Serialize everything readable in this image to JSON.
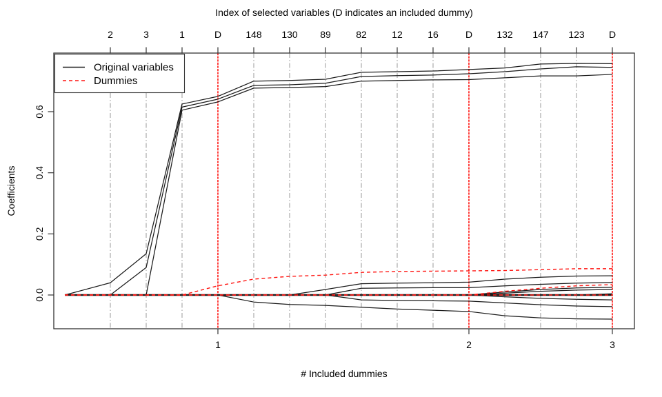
{
  "chart_data": {
    "type": "line",
    "title": "Index of selected variables (D indicates an included dummy)",
    "xlabel": "# Included dummies",
    "ylabel": "Coefficients",
    "grid": true,
    "legend": {
      "position": "topleft",
      "items": [
        {
          "label": "Original variables",
          "color": "#1a1a1a",
          "style": "solid"
        },
        {
          "label": "Dummies",
          "color": "#ff1410",
          "style": "dashed"
        }
      ]
    },
    "y_axis": {
      "tick_labels": [
        "0.0",
        "0.2",
        "0.4",
        "0.6"
      ],
      "tick_values": [
        0.0,
        0.2,
        0.4,
        0.6
      ],
      "range": [
        -0.112,
        0.792
      ]
    },
    "x_axis": {
      "ticks": [
        {
          "label": "1",
          "step": 4
        },
        {
          "label": "2",
          "step": 11
        },
        {
          "label": "3",
          "step": 15
        }
      ]
    },
    "top_axis": {
      "labels": [
        "2",
        "3",
        "1",
        "D",
        "148",
        "130",
        "89",
        "82",
        "12",
        "16",
        "D",
        "132",
        "147",
        "123",
        "D"
      ],
      "steps": [
        1,
        2,
        3,
        4,
        5,
        6,
        7,
        8,
        9,
        10,
        11,
        12,
        13,
        14,
        15
      ]
    },
    "dummy_entry_steps": [
      4,
      11,
      15
    ],
    "x_steps": [
      0,
      1,
      2,
      3,
      4,
      5,
      6,
      7,
      8,
      9,
      10,
      11,
      12,
      13,
      14,
      15
    ],
    "series": [
      {
        "name": "original-path-1",
        "group": "original",
        "values": [
          0,
          0.04,
          0.135,
          0.625,
          0.65,
          0.7,
          0.702,
          0.706,
          0.729,
          0.731,
          0.733,
          0.738,
          0.743,
          0.756,
          0.758,
          0.757
        ]
      },
      {
        "name": "original-path-2",
        "group": "original",
        "values": [
          0,
          0,
          0.09,
          0.615,
          0.641,
          0.686,
          0.688,
          0.693,
          0.715,
          0.718,
          0.72,
          0.724,
          0.731,
          0.74,
          0.747,
          0.745
        ]
      },
      {
        "name": "original-path-3",
        "group": "original",
        "values": [
          0,
          0,
          0,
          0.605,
          0.632,
          0.677,
          0.679,
          0.682,
          0.7,
          0.702,
          0.704,
          0.705,
          0.711,
          0.717,
          0.717,
          0.722
        ]
      },
      {
        "name": "original-path-4",
        "group": "original",
        "values": [
          0,
          0,
          0,
          0,
          0,
          -0.023,
          -0.031,
          -0.034,
          -0.04,
          -0.046,
          -0.05,
          -0.054,
          -0.068,
          -0.075,
          -0.078,
          -0.079
        ]
      },
      {
        "name": "original-path-5",
        "group": "original",
        "values": [
          0,
          0,
          0,
          0,
          0,
          0,
          0,
          0,
          -0.016,
          -0.018,
          -0.019,
          -0.02,
          -0.026,
          -0.032,
          -0.036,
          -0.038
        ]
      },
      {
        "name": "original-path-6",
        "group": "original",
        "values": [
          0,
          0,
          0,
          0,
          0,
          0,
          0,
          0.018,
          0.037,
          0.039,
          0.04,
          0.042,
          0.052,
          0.058,
          0.062,
          0.063
        ]
      },
      {
        "name": "original-path-7",
        "group": "original",
        "values": [
          0,
          0,
          0,
          0,
          0,
          0,
          0,
          0,
          0.022,
          0.023,
          0.024,
          0.024,
          0.03,
          0.035,
          0.039,
          0.041
        ]
      },
      {
        "name": "original-path-8",
        "group": "original",
        "values": [
          0,
          0,
          0,
          0,
          0,
          0,
          0,
          0,
          0,
          0,
          0,
          0,
          0.01,
          0.018,
          0.023,
          0.025
        ]
      },
      {
        "name": "original-path-9",
        "group": "original",
        "values": [
          0,
          0,
          0,
          0,
          0,
          0,
          0,
          0,
          0,
          0,
          0,
          0,
          0.006,
          0.012,
          0.016,
          0.018
        ]
      },
      {
        "name": "original-path-10",
        "group": "original",
        "values": [
          0,
          0,
          0,
          0,
          0,
          0,
          0,
          0,
          0,
          0,
          0,
          0,
          -0.006,
          -0.011,
          -0.014,
          -0.016
        ]
      },
      {
        "name": "original-path-11",
        "group": "original",
        "values": [
          0,
          0,
          0,
          0,
          0,
          0,
          0,
          0,
          0,
          0,
          0,
          0,
          0,
          0,
          0,
          0.004
        ]
      },
      {
        "name": "original-path-zero",
        "group": "original",
        "emphasis": true,
        "values": [
          0,
          0,
          0,
          0,
          0,
          0,
          0,
          0,
          0,
          0,
          0,
          0,
          0,
          0,
          0,
          0
        ]
      },
      {
        "name": "dummy-path-1",
        "group": "dummy",
        "values": [
          0,
          0,
          0,
          0,
          0.03,
          0.052,
          0.061,
          0.065,
          0.074,
          0.077,
          0.078,
          0.079,
          0.08,
          0.083,
          0.086,
          0.086
        ]
      },
      {
        "name": "dummy-path-2",
        "group": "dummy",
        "values": [
          0,
          0,
          0,
          0,
          0,
          0,
          0,
          0,
          0,
          0,
          0,
          0,
          0.012,
          0.022,
          0.03,
          0.034
        ]
      },
      {
        "name": "dummy-path-3",
        "group": "dummy",
        "values": [
          0,
          0,
          0,
          0,
          0,
          0,
          0,
          0,
          0,
          0,
          0,
          0,
          0,
          0,
          0,
          0
        ]
      }
    ]
  },
  "colors": {
    "original": "#1a1a1a",
    "dummy": "#ff1410",
    "dummy_vline": "#ff1410",
    "grid": "#ababab",
    "axis": "#333333",
    "background": "#ffffff"
  }
}
